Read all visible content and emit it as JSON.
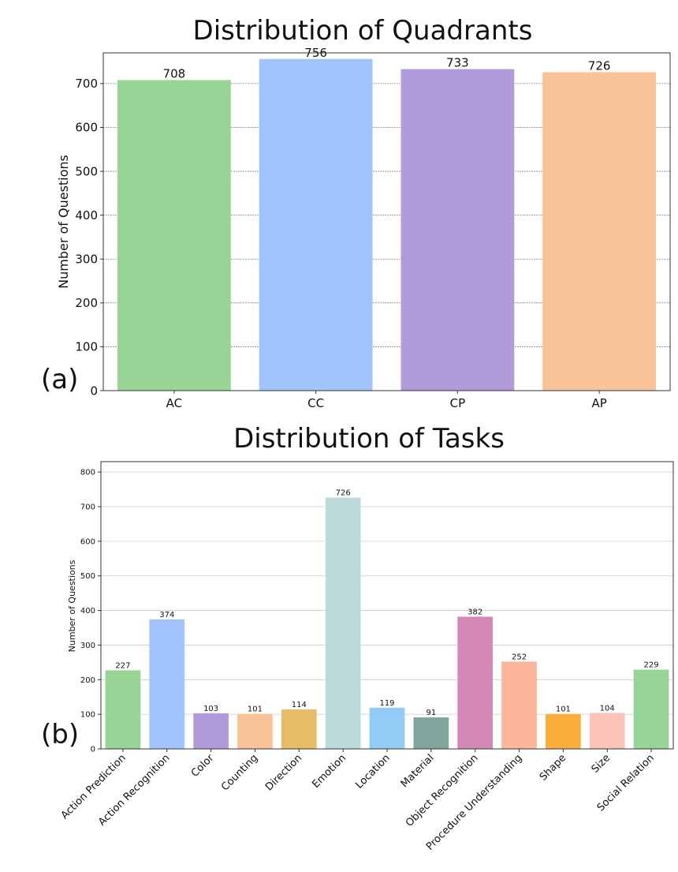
{
  "chart_data": [
    {
      "type": "bar",
      "panel_label": "(a)",
      "title": "Distribution of Quadrants",
      "xlabel": "",
      "ylabel": "Number of Questions",
      "categories": [
        "AC",
        "CC",
        "CP",
        "AP"
      ],
      "values": [
        708,
        756,
        733,
        726
      ],
      "colors": [
        "#98d495",
        "#a1c4fd",
        "#b19cd9",
        "#f9c297"
      ],
      "ylim": [
        0,
        770
      ],
      "yticks": [
        0,
        100,
        200,
        300,
        400,
        500,
        600,
        700
      ],
      "grid": true,
      "legend": "none"
    },
    {
      "type": "bar",
      "panel_label": "(b)",
      "title": "Distribution of Tasks",
      "xlabel": "",
      "ylabel": "Number of Questions",
      "categories": [
        "Action Prediction",
        "Action Recognition",
        "Color",
        "Counting",
        "Direction",
        "Emotion",
        "Location",
        "Material",
        "Object Recognition",
        "Procedure Understanding",
        "Shape",
        "Size",
        "Social Relation"
      ],
      "values": [
        227,
        374,
        103,
        101,
        114,
        726,
        119,
        91,
        382,
        252,
        101,
        104,
        229
      ],
      "colors": [
        "#98d495",
        "#a1c4fd",
        "#b19cd9",
        "#f9c297",
        "#e6bc67",
        "#bcd9db",
        "#92cbf6",
        "#7fa59c",
        "#d388b7",
        "#fbb59a",
        "#f9ad3d",
        "#fbc4b7",
        "#98d495"
      ],
      "ylim": [
        0,
        830
      ],
      "yticks": [
        0,
        100,
        200,
        300,
        400,
        500,
        600,
        700,
        800
      ],
      "grid": true,
      "legend": "none"
    }
  ]
}
